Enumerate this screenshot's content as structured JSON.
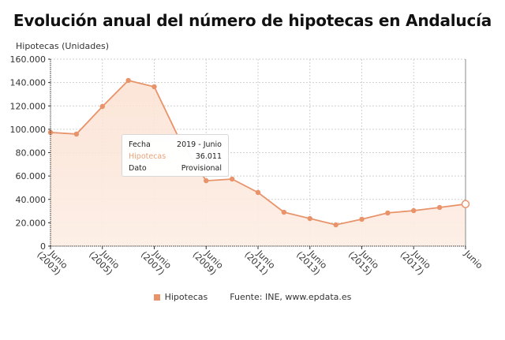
{
  "title": "Evolución anual del número de hipotecas en Andalucía",
  "y_axis_title": "Hipotecas (Unidades)",
  "y_ticks": [
    "0",
    "20.000",
    "40.000",
    "60.000",
    "80.000",
    "100.000",
    "120.000",
    "140.000",
    "160.000"
  ],
  "x_ticks": [
    {
      "line1": "Junio",
      "line2": "(2003)"
    },
    {
      "line1": "Junio",
      "line2": "(2005)"
    },
    {
      "line1": "Junio",
      "line2": "(2007)"
    },
    {
      "line1": "Junio",
      "line2": "(2009)"
    },
    {
      "line1": "Junio",
      "line2": "(2011)"
    },
    {
      "line1": "Junio",
      "line2": "(2013)"
    },
    {
      "line1": "Junio",
      "line2": "(2015)"
    },
    {
      "line1": "Junio",
      "line2": "(2017)"
    },
    {
      "line1": "Junio",
      "line2": ""
    }
  ],
  "tooltip": {
    "rows": [
      {
        "key": "Fecha",
        "value": "2019 - Junio"
      },
      {
        "key": "Hipotecas",
        "value": "36.011"
      },
      {
        "key": "Dato",
        "value": "Provisional"
      }
    ]
  },
  "legend": {
    "series_label": "Hipotecas",
    "source": "Fuente: INE, www.epdata.es"
  },
  "colors": {
    "line": "#e8936a",
    "fill_top": "#fbe3d6",
    "fill_bottom": "#fdf1ea",
    "grid": "#cccccc",
    "axis": "#333333"
  },
  "chart_data": {
    "type": "area",
    "title": "Evolución anual del número de hipotecas en Andalucía",
    "xlabel": "",
    "ylabel": "Hipotecas (Unidades)",
    "ylim": [
      0,
      160000
    ],
    "grid": true,
    "legend_position": "bottom",
    "categories": [
      "Junio 2003",
      "Junio 2004",
      "Junio 2005",
      "Junio 2006",
      "Junio 2007",
      "Junio 2008",
      "Junio 2009",
      "Junio 2010",
      "Junio 2011",
      "Junio 2012",
      "Junio 2013",
      "Junio 2014",
      "Junio 2015",
      "Junio 2016",
      "Junio 2017",
      "Junio 2018",
      "Junio 2019"
    ],
    "series": [
      {
        "name": "Hipotecas",
        "values": [
          97300,
          95900,
          119500,
          141800,
          136400,
          90000,
          56000,
          57400,
          45900,
          29000,
          23600,
          18200,
          23000,
          28400,
          30400,
          33100,
          36011
        ]
      }
    ],
    "annotations": [
      "Tooltip: Fecha 2019 - Junio, Hipotecas 36.011, Dato Provisional"
    ],
    "source": "Fuente: INE, www.epdata.es"
  }
}
